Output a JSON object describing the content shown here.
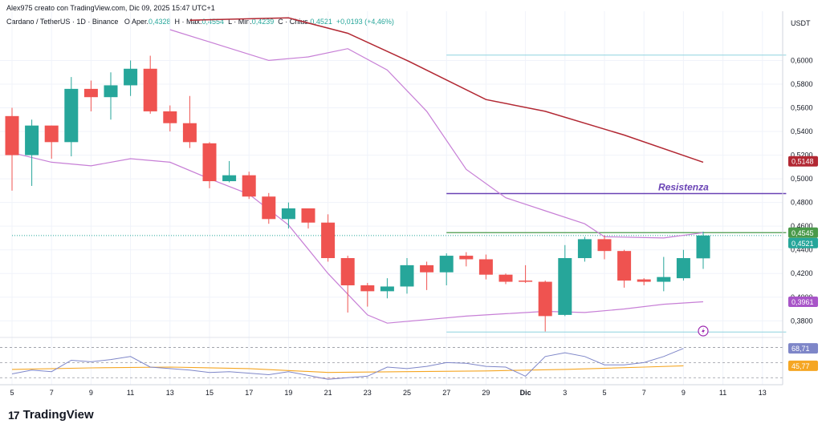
{
  "header": {
    "author_line": "Alex975 creato con TradingView.com, Dic 09, 2025 15:47 UTC+1",
    "symbol": "Cardano / TetherUS · 1D · Binance",
    "o_label": "O",
    "o_text": "Aper.",
    "o_value": "0,4328",
    "h_text": "H · Max.",
    "h_value": "0,4554",
    "l_text": "L · Min.",
    "l_value": "0,4239",
    "c_text": "C · Chius.",
    "c_value": "0,4521",
    "change": "+0,0193 (+4,46%)"
  },
  "footer": {
    "logo_text": "17",
    "brand": "TradingView"
  },
  "colors": {
    "up": "#26a69a",
    "down": "#ef5350",
    "ema_long": "#b22833",
    "band": "#c77fd6",
    "resistance": "#6a43b5",
    "green_line": "#4a9a4a",
    "cyan_line": "#8dd3df",
    "rsi": "#7e86c8",
    "rsi_ma": "#f5a623",
    "axis_text": "#131722"
  },
  "chart_data": {
    "type": "candlestick",
    "price_axis_title": "USDT",
    "price_ticks": [
      "0,6000",
      "0,5800",
      "0,5600",
      "0,5400",
      "0,5200",
      "0,5000",
      "0,4800",
      "0,4600",
      "0,4400",
      "0,4200",
      "0,4000",
      "0,3800"
    ],
    "price_range": [
      0.368,
      0.624
    ],
    "x_ticks": [
      {
        "i": 0,
        "label": "5"
      },
      {
        "i": 2,
        "label": "7"
      },
      {
        "i": 4,
        "label": "9"
      },
      {
        "i": 6,
        "label": "11"
      },
      {
        "i": 8,
        "label": "13"
      },
      {
        "i": 10,
        "label": "15"
      },
      {
        "i": 12,
        "label": "17"
      },
      {
        "i": 14,
        "label": "19"
      },
      {
        "i": 16,
        "label": "21"
      },
      {
        "i": 18,
        "label": "23"
      },
      {
        "i": 20,
        "label": "25"
      },
      {
        "i": 22,
        "label": "27"
      },
      {
        "i": 24,
        "label": "29"
      },
      {
        "i": 26,
        "label": "Dic"
      },
      {
        "i": 28,
        "label": "3"
      },
      {
        "i": 30,
        "label": "5"
      },
      {
        "i": 32,
        "label": "7"
      },
      {
        "i": 34,
        "label": "9"
      },
      {
        "i": 36,
        "label": "11"
      },
      {
        "i": 38,
        "label": "13"
      }
    ],
    "candles": [
      {
        "o": 0.553,
        "h": 0.56,
        "l": 0.49,
        "c": 0.52
      },
      {
        "o": 0.52,
        "h": 0.55,
        "l": 0.494,
        "c": 0.545
      },
      {
        "o": 0.545,
        "h": 0.545,
        "l": 0.517,
        "c": 0.531
      },
      {
        "o": 0.531,
        "h": 0.586,
        "l": 0.519,
        "c": 0.576
      },
      {
        "o": 0.576,
        "h": 0.583,
        "l": 0.557,
        "c": 0.569
      },
      {
        "o": 0.569,
        "h": 0.59,
        "l": 0.55,
        "c": 0.579
      },
      {
        "o": 0.579,
        "h": 0.6,
        "l": 0.57,
        "c": 0.593
      },
      {
        "o": 0.593,
        "h": 0.604,
        "l": 0.555,
        "c": 0.557
      },
      {
        "o": 0.557,
        "h": 0.562,
        "l": 0.54,
        "c": 0.547
      },
      {
        "o": 0.547,
        "h": 0.57,
        "l": 0.526,
        "c": 0.531
      },
      {
        "o": 0.53,
        "h": 0.531,
        "l": 0.492,
        "c": 0.498
      },
      {
        "o": 0.498,
        "h": 0.515,
        "l": 0.497,
        "c": 0.503
      },
      {
        "o": 0.503,
        "h": 0.506,
        "l": 0.483,
        "c": 0.485
      },
      {
        "o": 0.485,
        "h": 0.488,
        "l": 0.462,
        "c": 0.466
      },
      {
        "o": 0.466,
        "h": 0.48,
        "l": 0.458,
        "c": 0.475
      },
      {
        "o": 0.475,
        "h": 0.475,
        "l": 0.458,
        "c": 0.463
      },
      {
        "o": 0.463,
        "h": 0.47,
        "l": 0.43,
        "c": 0.433
      },
      {
        "o": 0.433,
        "h": 0.435,
        "l": 0.387,
        "c": 0.41
      },
      {
        "o": 0.41,
        "h": 0.412,
        "l": 0.392,
        "c": 0.405
      },
      {
        "o": 0.405,
        "h": 0.416,
        "l": 0.399,
        "c": 0.409
      },
      {
        "o": 0.409,
        "h": 0.433,
        "l": 0.403,
        "c": 0.427
      },
      {
        "o": 0.427,
        "h": 0.43,
        "l": 0.406,
        "c": 0.421
      },
      {
        "o": 0.421,
        "h": 0.437,
        "l": 0.41,
        "c": 0.435
      },
      {
        "o": 0.435,
        "h": 0.438,
        "l": 0.426,
        "c": 0.432
      },
      {
        "o": 0.432,
        "h": 0.436,
        "l": 0.415,
        "c": 0.419
      },
      {
        "o": 0.419,
        "h": 0.42,
        "l": 0.411,
        "c": 0.413
      },
      {
        "o": 0.414,
        "h": 0.427,
        "l": 0.412,
        "c": 0.413
      },
      {
        "o": 0.413,
        "h": 0.414,
        "l": 0.371,
        "c": 0.384
      },
      {
        "o": 0.385,
        "h": 0.444,
        "l": 0.384,
        "c": 0.433
      },
      {
        "o": 0.433,
        "h": 0.451,
        "l": 0.43,
        "c": 0.449
      },
      {
        "o": 0.449,
        "h": 0.452,
        "l": 0.432,
        "c": 0.439
      },
      {
        "o": 0.439,
        "h": 0.44,
        "l": 0.408,
        "c": 0.414
      },
      {
        "o": 0.415,
        "h": 0.416,
        "l": 0.41,
        "c": 0.413
      },
      {
        "o": 0.413,
        "h": 0.434,
        "l": 0.405,
        "c": 0.417
      },
      {
        "o": 0.416,
        "h": 0.44,
        "l": 0.414,
        "c": 0.433
      },
      {
        "o": 0.4328,
        "h": 0.4554,
        "l": 0.4239,
        "c": 0.4521
      }
    ],
    "ema_long": [
      {
        "i": 9,
        "v": 0.634
      },
      {
        "i": 14,
        "v": 0.636
      },
      {
        "i": 17,
        "v": 0.623
      },
      {
        "i": 20,
        "v": 0.6
      },
      {
        "i": 24,
        "v": 0.567
      },
      {
        "i": 27,
        "v": 0.557
      },
      {
        "i": 31,
        "v": 0.537
      },
      {
        "i": 35,
        "v": 0.514
      }
    ],
    "band_upper": [
      {
        "i": 8,
        "v": 0.626
      },
      {
        "i": 13,
        "v": 0.6
      },
      {
        "i": 15,
        "v": 0.603
      },
      {
        "i": 17,
        "v": 0.61
      },
      {
        "i": 19,
        "v": 0.592
      },
      {
        "i": 21,
        "v": 0.557
      },
      {
        "i": 23,
        "v": 0.508
      },
      {
        "i": 25,
        "v": 0.484
      },
      {
        "i": 27,
        "v": 0.473
      },
      {
        "i": 29,
        "v": 0.462
      },
      {
        "i": 30,
        "v": 0.451
      },
      {
        "i": 33,
        "v": 0.45
      },
      {
        "i": 35,
        "v": 0.4545
      }
    ],
    "band_lower": [
      {
        "i": 0,
        "v": 0.522
      },
      {
        "i": 2,
        "v": 0.514
      },
      {
        "i": 4,
        "v": 0.511
      },
      {
        "i": 6,
        "v": 0.517
      },
      {
        "i": 8,
        "v": 0.514
      },
      {
        "i": 10,
        "v": 0.5
      },
      {
        "i": 12,
        "v": 0.487
      },
      {
        "i": 14,
        "v": 0.461
      },
      {
        "i": 16,
        "v": 0.42
      },
      {
        "i": 18,
        "v": 0.385
      },
      {
        "i": 19,
        "v": 0.378
      },
      {
        "i": 21,
        "v": 0.381
      },
      {
        "i": 23,
        "v": 0.384
      },
      {
        "i": 25,
        "v": 0.386
      },
      {
        "i": 27,
        "v": 0.388
      },
      {
        "i": 29,
        "v": 0.387
      },
      {
        "i": 31,
        "v": 0.39
      },
      {
        "i": 33,
        "v": 0.394
      },
      {
        "i": 35,
        "v": 0.3961
      }
    ],
    "levels": [
      {
        "name": "Resistenza",
        "value": 0.4875,
        "from_i": 22,
        "to_i": 39,
        "kind": "resistance"
      },
      {
        "name": "",
        "value": 0.4545,
        "from_i": 22,
        "to_i": 39,
        "kind": "green"
      },
      {
        "name": "",
        "value": 0.6045,
        "from_i": 22,
        "to_i": 39,
        "kind": "cyan"
      },
      {
        "name": "",
        "value": 0.3705,
        "from_i": 22,
        "to_i": 39,
        "kind": "cyan"
      },
      {
        "name": "",
        "value": 0.4521,
        "from_i": 0,
        "to_i": 39,
        "kind": "last"
      }
    ],
    "resistance_label": "Resistenza",
    "price_tags": [
      {
        "value": 0.5148,
        "label": "0,5148",
        "color": "#b22833"
      },
      {
        "value": 0.4545,
        "label": "0,4545",
        "color": "#4a9a4a"
      },
      {
        "value": 0.4521,
        "label": "0,4521",
        "color": "#26a69a"
      },
      {
        "value": 0.3961,
        "label": "0,3961",
        "color": "#a855c8"
      }
    ],
    "rsi": {
      "range": [
        25,
        80
      ],
      "guide_levels": [
        70,
        50,
        30
      ],
      "values": [
        {
          "i": 0,
          "v": 35
        },
        {
          "i": 1,
          "v": 40
        },
        {
          "i": 2,
          "v": 38
        },
        {
          "i": 3,
          "v": 53
        },
        {
          "i": 4,
          "v": 51
        },
        {
          "i": 5,
          "v": 54
        },
        {
          "i": 6,
          "v": 58
        },
        {
          "i": 7,
          "v": 44
        },
        {
          "i": 8,
          "v": 42
        },
        {
          "i": 9,
          "v": 40
        },
        {
          "i": 10,
          "v": 37
        },
        {
          "i": 11,
          "v": 38
        },
        {
          "i": 12,
          "v": 36
        },
        {
          "i": 13,
          "v": 34
        },
        {
          "i": 14,
          "v": 38
        },
        {
          "i": 15,
          "v": 33
        },
        {
          "i": 16,
          "v": 28
        },
        {
          "i": 17,
          "v": 30
        },
        {
          "i": 18,
          "v": 32
        },
        {
          "i": 19,
          "v": 44
        },
        {
          "i": 20,
          "v": 42
        },
        {
          "i": 21,
          "v": 45
        },
        {
          "i": 22,
          "v": 50
        },
        {
          "i": 23,
          "v": 49
        },
        {
          "i": 24,
          "v": 45
        },
        {
          "i": 25,
          "v": 44
        },
        {
          "i": 26,
          "v": 32
        },
        {
          "i": 27,
          "v": 58
        },
        {
          "i": 28,
          "v": 63
        },
        {
          "i": 29,
          "v": 58
        },
        {
          "i": 30,
          "v": 47
        },
        {
          "i": 31,
          "v": 47
        },
        {
          "i": 32,
          "v": 50
        },
        {
          "i": 33,
          "v": 58
        },
        {
          "i": 34,
          "v": 68.71
        }
      ],
      "ma": [
        {
          "i": 0,
          "v": 41
        },
        {
          "i": 4,
          "v": 43
        },
        {
          "i": 8,
          "v": 44
        },
        {
          "i": 12,
          "v": 42
        },
        {
          "i": 16,
          "v": 37
        },
        {
          "i": 20,
          "v": 38
        },
        {
          "i": 24,
          "v": 39
        },
        {
          "i": 28,
          "v": 41
        },
        {
          "i": 32,
          "v": 44
        },
        {
          "i": 34,
          "v": 45.77
        }
      ],
      "tags": [
        {
          "value": 68.71,
          "label": "68,71",
          "color": "#7e86c8"
        },
        {
          "value": 45.77,
          "label": "45,77",
          "color": "#f5a623"
        }
      ]
    }
  }
}
